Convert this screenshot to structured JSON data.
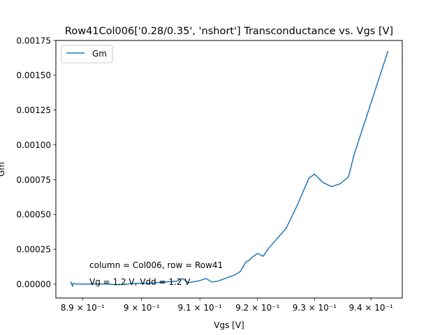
{
  "chart_data": {
    "type": "line",
    "title": "Row41Col006['0.28/0.35', 'nshort'] Transconductance vs. Vgs [V]",
    "xlabel": "Vgs [V]",
    "ylabel": "Gm",
    "xlim": [
      0.8855,
      0.9456
    ],
    "ylim": [
      -0.0001,
      0.00175
    ],
    "x_scale": "log",
    "x_ticks": [
      {
        "value": 0.89,
        "label": "8.9 × 10⁻¹"
      },
      {
        "value": 0.9,
        "label": "9 × 10⁻¹"
      },
      {
        "value": 0.91,
        "label": "9.1 × 10⁻¹"
      },
      {
        "value": 0.92,
        "label": "9.2 × 10⁻¹"
      },
      {
        "value": 0.93,
        "label": "9.3 × 10⁻¹"
      },
      {
        "value": 0.94,
        "label": "9.4 × 10⁻¹"
      }
    ],
    "y_ticks": [
      {
        "value": 0.0,
        "label": "0.00000"
      },
      {
        "value": 0.00025,
        "label": "0.00025"
      },
      {
        "value": 0.0005,
        "label": "0.00050"
      },
      {
        "value": 0.00075,
        "label": "0.00075"
      },
      {
        "value": 0.001,
        "label": "0.00100"
      },
      {
        "value": 0.00125,
        "label": "0.00125"
      },
      {
        "value": 0.0015,
        "label": "0.00150"
      },
      {
        "value": 0.00175,
        "label": "0.00175"
      }
    ],
    "legend": {
      "position": "top-left",
      "entries": [
        "Gm"
      ]
    },
    "grid": false,
    "annotations": [
      "column = Col006, row = Row41",
      "Vg = 1.2 V, Vdd = 1.2 V"
    ],
    "series": [
      {
        "name": "Gm",
        "color": "#1f77b4",
        "x": [
          0.888,
          0.8883,
          0.8884,
          0.889,
          0.89,
          0.891,
          0.894,
          0.896,
          0.899,
          0.901,
          0.904,
          0.906,
          0.907,
          0.908,
          0.91,
          0.911,
          0.9115,
          0.912,
          0.913,
          0.914,
          0.915,
          0.916,
          0.917,
          0.918,
          0.9185,
          0.919,
          0.92,
          0.921,
          0.922,
          0.925,
          0.927,
          0.929,
          0.93,
          0.9315,
          0.933,
          0.9345,
          0.936,
          0.937,
          0.943
        ],
        "y": [
          1.5e-05,
          -1.5e-05,
          5e-06,
          0.0,
          0.0,
          0.0,
          0.0,
          -5e-06,
          5e-06,
          5e-06,
          1.5e-05,
          2e-05,
          4e-05,
          1e-05,
          2.5e-05,
          4e-05,
          3e-05,
          1.5e-05,
          2e-05,
          3.5e-05,
          5e-05,
          6.5e-05,
          9e-05,
          0.00016,
          0.00017,
          0.00019,
          0.00022,
          0.0002,
          0.00026,
          0.0004,
          0.00057,
          0.00076,
          0.00079,
          0.00073,
          0.0007,
          0.00072,
          0.00077,
          0.00093,
          0.00167
        ]
      }
    ]
  }
}
